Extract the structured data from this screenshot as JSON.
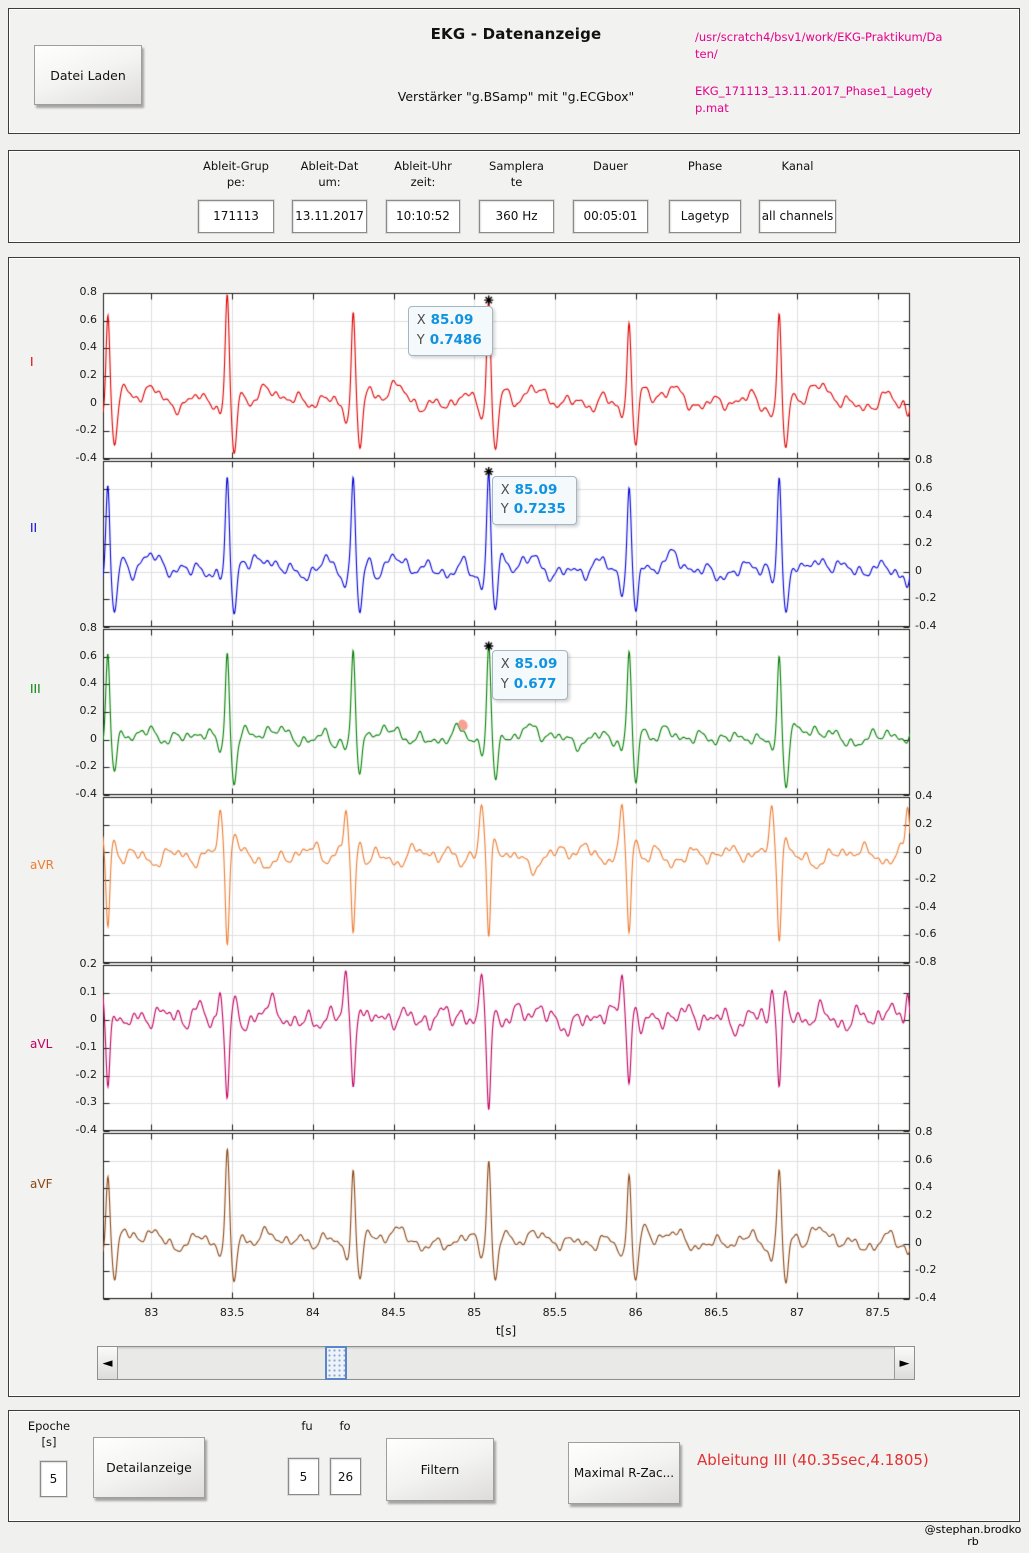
{
  "header": {
    "load_button": "Datei Laden",
    "title": "EKG - Datenanzeige",
    "subtitle": "Verstärker \"g.BSamp\" mit \"g.ECGbox\"",
    "file_path": "/usr/scratch4/bsv1/work/EKG-Praktikum/Daten/",
    "file_name": "EKG_171113_13.11.2017_Phase1_Lagetyp.mat",
    "accent_color": "#e6008c"
  },
  "info_bar": {
    "fields": [
      {
        "label": "Ableit-Gruppe:",
        "value": "171113"
      },
      {
        "label": "Ableit-Datum:",
        "value": "13.11.2017"
      },
      {
        "label": "Ableit-Uhrzeit:",
        "value": "10:10:52"
      },
      {
        "label": "Samplerate",
        "value": "360 Hz"
      },
      {
        "label": "Dauer",
        "value": "00:05:01"
      },
      {
        "label": "Phase",
        "value": "Lagetyp"
      },
      {
        "label": "Kanal",
        "value": "all channels"
      }
    ]
  },
  "chart_data": {
    "type": "line",
    "xlabel": "t[s]",
    "x_range": [
      82.7,
      87.7
    ],
    "x_ticks": [
      "83",
      "83.5",
      "84",
      "84.5",
      "85",
      "85.5",
      "86",
      "86.5",
      "87",
      "87.5"
    ],
    "grid": true,
    "beat_times": [
      82.73,
      83.47,
      84.25,
      85.09,
      85.96,
      86.89,
      87.73
    ],
    "beat_scale": [
      0.88,
      0.99,
      0.94,
      1.0,
      0.85,
      0.87,
      0.95
    ],
    "tip_labels": {
      "x": "X",
      "y": "Y"
    },
    "leads": [
      {
        "label": "I",
        "color": "#e00000",
        "ylim": [
          -0.4,
          0.8
        ],
        "tick_side": "left",
        "ytick_labels": [
          "0.8",
          "0.6",
          "0.4",
          "0.2",
          "0",
          "-0.2",
          "-0.4"
        ],
        "r": 0.749,
        "q": -0.09,
        "s": -0.34,
        "p": 0.05,
        "t_wave": 0.11,
        "noise": 0.027
      },
      {
        "label": "II",
        "color": "#0000d9",
        "ylim": [
          -0.4,
          0.8
        ],
        "tick_side": "right",
        "ytick_labels": [
          "0.8",
          "0.6",
          "0.4",
          "0.2",
          "0",
          "-0.2",
          "-0.4"
        ],
        "r": 0.724,
        "q": -0.1,
        "s": -0.31,
        "p": 0.06,
        "t_wave": 0.09,
        "noise": 0.03
      },
      {
        "label": "III",
        "color": "#007f00",
        "ylim": [
          -0.4,
          0.8
        ],
        "tick_side": "left",
        "ytick_labels": [
          "0.8",
          "0.6",
          "0.4",
          "0.2",
          "0",
          "-0.2",
          "-0.4"
        ],
        "r": 0.677,
        "q": -0.08,
        "s": -0.3,
        "p": 0.05,
        "t_wave": 0.07,
        "noise": 0.028
      },
      {
        "label": "aVR",
        "color": "#ed7d31",
        "ylim": [
          -0.8,
          0.4
        ],
        "tick_side": "right",
        "ytick_labels": [
          "0.4",
          "0.2",
          "0",
          "-0.2",
          "-0.4",
          "-0.6",
          "-0.8"
        ],
        "r": -0.66,
        "q": 0.31,
        "s": 0.12,
        "p": -0.05,
        "t_wave": -0.08,
        "noise": 0.03
      },
      {
        "label": "aVL",
        "color": "#c10061",
        "ylim": [
          -0.4,
          0.2
        ],
        "tick_side": "left",
        "ytick_labels": [
          "0.2",
          "0.1",
          "0",
          "-0.1",
          "-0.2",
          "-0.3",
          "-0.4"
        ],
        "r": -0.27,
        "q": 0.14,
        "s": 0.06,
        "p": 0.03,
        "t_wave": 0.03,
        "noise": 0.022
      },
      {
        "label": "aVF",
        "color": "#8b4513",
        "ylim": [
          -0.4,
          0.8
        ],
        "tick_side": "right",
        "ytick_labels": [
          "0.8",
          "0.6",
          "0.4",
          "0.2",
          "0",
          "-0.2",
          "-0.4"
        ],
        "r": 0.62,
        "q": -0.09,
        "s": -0.28,
        "p": 0.05,
        "t_wave": 0.08,
        "noise": 0.026
      }
    ],
    "datatips": [
      {
        "lead": 0,
        "x": "85.09",
        "y": "0.7486"
      },
      {
        "lead": 1,
        "x": "85.09",
        "y": "0.7235"
      },
      {
        "lead": 2,
        "x": "85.09",
        "y": "0.677"
      }
    ],
    "highlight_point": {
      "lead": 2,
      "x": 84.93,
      "y": 0.107,
      "color": "#f4917f"
    }
  },
  "controls": {
    "epoche_label": "Epoche [s]",
    "epoche_value": "5",
    "detail_button": "Detailanzeige",
    "fu_label": "fu",
    "fo_label": "fo",
    "fu_value": "5",
    "fo_value": "26",
    "filter_button": "Filtern",
    "rpeak_button": "Maximal R-Zac...",
    "annotation": "Ableitung III (40.35sec,4.1805)",
    "annotation_color": "#e03232"
  },
  "watermark": "@stephan.brodkorb"
}
